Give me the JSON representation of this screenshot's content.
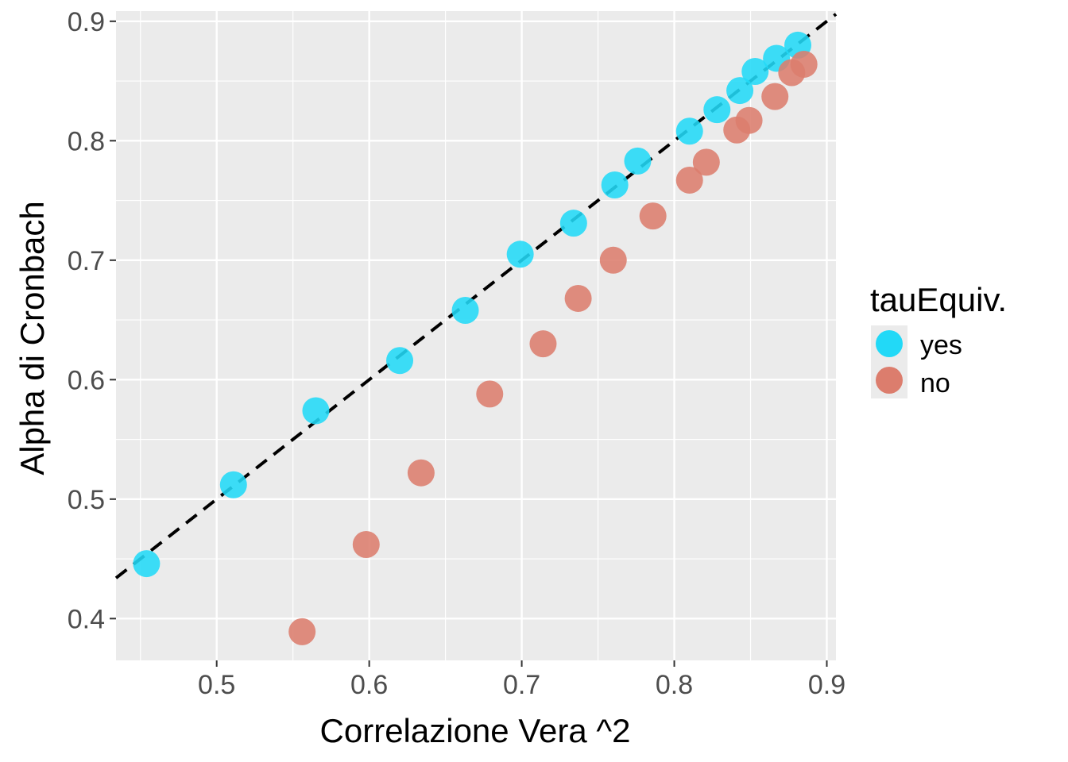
{
  "chart_data": {
    "type": "scatter",
    "title": "",
    "xlabel": "Correlazione Vera ^2",
    "ylabel": "Alpha di Cronbach",
    "xlim": [
      0.434,
      0.906
    ],
    "ylim": [
      0.365,
      0.9085
    ],
    "x_ticks": [
      0.5,
      0.6,
      0.7,
      0.8,
      0.9
    ],
    "x_tick_labels": [
      "0.5",
      "0.6",
      "0.7",
      "0.8",
      "0.9"
    ],
    "y_ticks": [
      0.4,
      0.5,
      0.6,
      0.7,
      0.8,
      0.9
    ],
    "y_tick_labels": [
      "0.4",
      "0.5",
      "0.6",
      "0.7",
      "0.8",
      "0.9"
    ],
    "grid": true,
    "reference_line": {
      "type": "identity",
      "style": "dashed",
      "color": "#000000"
    },
    "legend": {
      "title": "tauEquiv.",
      "position": "right",
      "entries": [
        "yes",
        "no"
      ]
    },
    "series": [
      {
        "name": "yes",
        "color": "#22d9f7",
        "x": [
          0.454,
          0.511,
          0.565,
          0.62,
          0.663,
          0.699,
          0.734,
          0.761,
          0.776,
          0.81,
          0.828,
          0.843,
          0.853,
          0.867,
          0.881
        ],
        "y": [
          0.446,
          0.512,
          0.574,
          0.616,
          0.658,
          0.705,
          0.731,
          0.763,
          0.783,
          0.808,
          0.826,
          0.842,
          0.858,
          0.869,
          0.88
        ]
      },
      {
        "name": "no",
        "color": "#dc7d6d",
        "x": [
          0.556,
          0.598,
          0.634,
          0.679,
          0.714,
          0.737,
          0.76,
          0.786,
          0.81,
          0.821,
          0.841,
          0.849,
          0.866,
          0.877,
          0.885
        ],
        "y": [
          0.389,
          0.462,
          0.522,
          0.588,
          0.63,
          0.668,
          0.7,
          0.737,
          0.767,
          0.782,
          0.809,
          0.817,
          0.837,
          0.857,
          0.864
        ]
      }
    ]
  }
}
